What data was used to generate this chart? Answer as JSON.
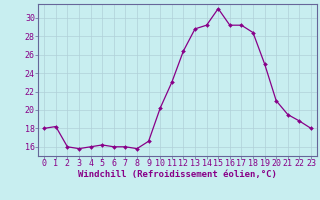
{
  "x": [
    0,
    1,
    2,
    3,
    4,
    5,
    6,
    7,
    8,
    9,
    10,
    11,
    12,
    13,
    14,
    15,
    16,
    17,
    18,
    19,
    20,
    21,
    22,
    23
  ],
  "y": [
    18,
    18.2,
    16,
    15.8,
    16,
    16.2,
    16,
    16,
    15.8,
    16.6,
    20.2,
    23.0,
    26.4,
    28.8,
    29.2,
    31.0,
    29.2,
    29.2,
    28.4,
    25.0,
    21.0,
    19.5,
    18.8,
    18.0
  ],
  "line_color": "#880088",
  "marker_color": "#880088",
  "bg_color": "#c8eef0",
  "grid_color": "#b0d0d8",
  "xlabel": "Windchill (Refroidissement éolien,°C)",
  "xlim": [
    -0.5,
    23.5
  ],
  "ylim": [
    15.0,
    31.5
  ],
  "yticks": [
    16,
    18,
    20,
    22,
    24,
    26,
    28,
    30
  ],
  "xtick_labels": [
    "0",
    "1",
    "2",
    "3",
    "4",
    "5",
    "6",
    "7",
    "8",
    "9",
    "10",
    "11",
    "12",
    "13",
    "14",
    "15",
    "16",
    "17",
    "18",
    "19",
    "20",
    "21",
    "22",
    "23"
  ],
  "xlabel_fontsize": 6.5,
  "tick_fontsize": 6.0,
  "label_color": "#880088",
  "spine_color": "#666699"
}
